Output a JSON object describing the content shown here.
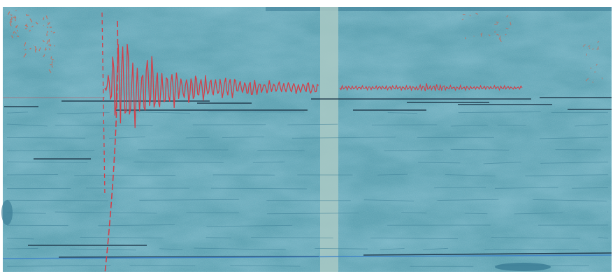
{
  "image": {
    "subject": "seismogram-record",
    "colors": {
      "paper": "#5fa3b3",
      "paper_light": "#78b8c2",
      "paper_dark": "#3d7f97",
      "trace": "#d2404a",
      "baseline": "#1d3447",
      "blue_line": "#3a7fc9",
      "seam": "#a9c9c4",
      "ink_marks": "#c86a5a",
      "border": "#ffffff"
    }
  }
}
